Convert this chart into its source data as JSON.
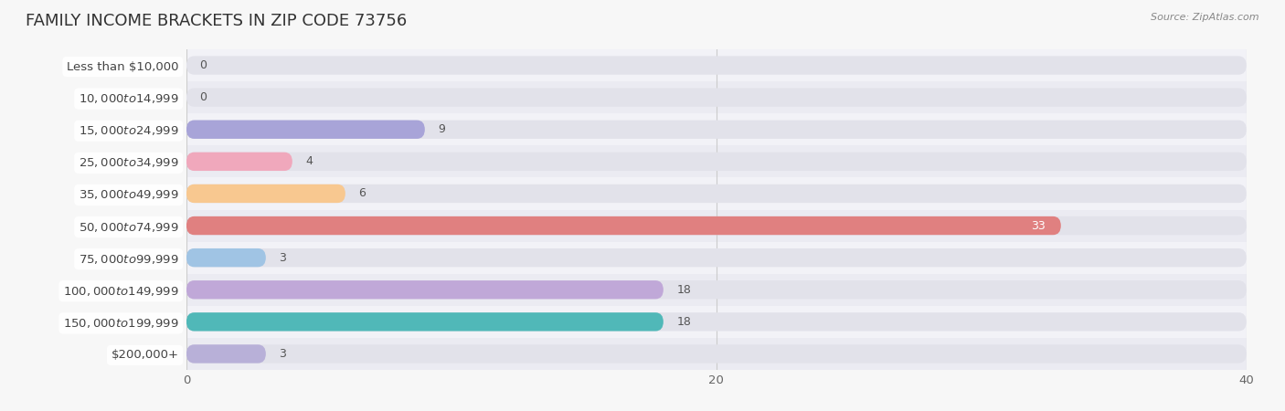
{
  "title": "Family Income Brackets in Zip Code 73756",
  "source": "Source: ZipAtlas.com",
  "categories": [
    "Less than $10,000",
    "$10,000 to $14,999",
    "$15,000 to $24,999",
    "$25,000 to $34,999",
    "$35,000 to $49,999",
    "$50,000 to $74,999",
    "$75,000 to $99,999",
    "$100,000 to $149,999",
    "$150,000 to $199,999",
    "$200,000+"
  ],
  "values": [
    0,
    0,
    9,
    4,
    6,
    33,
    3,
    18,
    18,
    3
  ],
  "bar_colors": [
    "#c8aed4",
    "#72c8c8",
    "#a8a4d8",
    "#f0a8bc",
    "#f8c890",
    "#e08080",
    "#a0c4e4",
    "#c0a8d8",
    "#50b8b8",
    "#b8b0d8"
  ],
  "background_color": "#f7f7f7",
  "bar_bg_color": "#e2e2ea",
  "row_bg_colors": [
    "#f2f2f7",
    "#ebebf2"
  ],
  "xlim": [
    0,
    40
  ],
  "xticks": [
    0,
    20,
    40
  ],
  "title_fontsize": 13,
  "label_fontsize": 9.5,
  "tick_fontsize": 9.5,
  "value_fontsize": 9,
  "bar_height": 0.58
}
